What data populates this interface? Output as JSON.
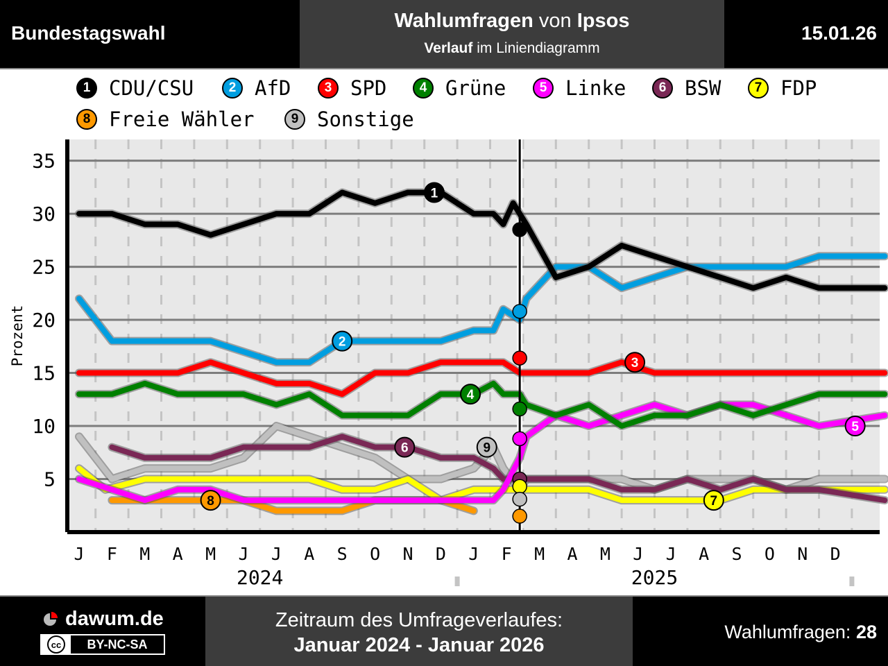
{
  "header": {
    "left": "Bundestagswahl",
    "title_bold1": "Wahlumfragen",
    "title_mid": " von ",
    "title_bold2": "Ipsos",
    "sub_bold": "Verlauf",
    "sub_rest": " im Liniendiagramm",
    "date": "15.01.26"
  },
  "legend": [
    {
      "num": "1",
      "name": "CDU/CSU",
      "color": "#000000",
      "text_color": "#ffffff"
    },
    {
      "num": "2",
      "name": "AfD",
      "color": "#009ee0",
      "text_color": "#ffffff"
    },
    {
      "num": "3",
      "name": "SPD",
      "color": "#ff0000",
      "text_color": "#ffffff"
    },
    {
      "num": "4",
      "name": "Grüne",
      "color": "#008000",
      "text_color": "#ffffff"
    },
    {
      "num": "5",
      "name": "Linke",
      "color": "#ff00ff",
      "text_color": "#ffffff"
    },
    {
      "num": "6",
      "name": "BSW",
      "color": "#7a2855",
      "text_color": "#ffffff"
    },
    {
      "num": "7",
      "name": "FDP",
      "color": "#ffff00",
      "text_color": "#000000"
    },
    {
      "num": "8",
      "name": "Freie Wähler",
      "color": "#ff9900",
      "text_color": "#000000"
    },
    {
      "num": "9",
      "name": "Sonstige",
      "color": "#c0c0c0",
      "text_color": "#000000"
    }
  ],
  "chart_data": {
    "type": "line",
    "ylabel": "Prozent",
    "ylim": [
      0,
      37
    ],
    "yticks": [
      5,
      10,
      15,
      20,
      25,
      30,
      35
    ],
    "xlim": [
      0,
      24.6
    ],
    "month_ticks": [
      "J",
      "F",
      "M",
      "A",
      "M",
      "J",
      "J",
      "A",
      "S",
      "O",
      "N",
      "D",
      "J",
      "F",
      "M",
      "A",
      "M",
      "J",
      "J",
      "A",
      "S",
      "O",
      "N",
      "D"
    ],
    "years": [
      {
        "label": "2024",
        "month": 5.5
      },
      {
        "label": "2025",
        "month": 17.5
      }
    ],
    "election": {
      "month": 13.4,
      "results": {
        "1": 28.5,
        "2": 20.8,
        "3": 16.4,
        "4": 11.6,
        "5": 8.8,
        "6": 5.0,
        "7": 4.3,
        "8": 1.5,
        "9": 3.1
      }
    },
    "series": [
      {
        "id": "1",
        "name": "CDU/CSU",
        "color": "#000000",
        "x": [
          0,
          1,
          2,
          3,
          4,
          5,
          6,
          7,
          8,
          9,
          10,
          11,
          12,
          12.6,
          12.9,
          13.2,
          13.4,
          13.6,
          14.5,
          15.5,
          16.5,
          17.5,
          18.5,
          19.5,
          20.5,
          21.5,
          22.5,
          23.5,
          24.5
        ],
        "y": [
          30,
          30,
          29,
          29,
          28,
          29,
          30,
          30,
          32,
          31,
          32,
          32,
          30,
          30,
          29,
          31,
          30,
          29,
          24,
          25,
          27,
          26,
          25,
          24,
          23,
          24,
          23,
          23,
          23
        ]
      },
      {
        "id": "2",
        "name": "AfD",
        "color": "#009ee0",
        "x": [
          0,
          1,
          2,
          3,
          4,
          5,
          6,
          7,
          8,
          9,
          10,
          11,
          12,
          12.6,
          12.9,
          13.4,
          13.6,
          14.5,
          15.5,
          16.5,
          17.5,
          18.5,
          19.5,
          20.5,
          21.5,
          22.5,
          23.5,
          24.5
        ],
        "y": [
          22,
          18,
          18,
          18,
          18,
          17,
          16,
          16,
          18,
          18,
          18,
          18,
          19,
          19,
          21,
          20,
          22,
          25,
          25,
          23,
          24,
          25,
          25,
          25,
          25,
          26,
          26,
          26
        ]
      },
      {
        "id": "3",
        "name": "SPD",
        "color": "#ff0000",
        "x": [
          0,
          1,
          2,
          3,
          4,
          5,
          6,
          7,
          8,
          9,
          10,
          11,
          12,
          12.6,
          12.9,
          13.4,
          13.6,
          14.5,
          15.5,
          16.5,
          17.5,
          18.5,
          19.5,
          20.5,
          21.5,
          22.5,
          23.5,
          24.5
        ],
        "y": [
          15,
          15,
          15,
          15,
          16,
          15,
          14,
          14,
          13,
          15,
          15,
          16,
          16,
          16,
          16,
          15,
          15,
          15,
          15,
          16,
          15,
          15,
          15,
          15,
          15,
          15,
          15,
          15
        ]
      },
      {
        "id": "4",
        "name": "Grüne",
        "color": "#008000",
        "x": [
          0,
          1,
          2,
          3,
          4,
          5,
          6,
          7,
          8,
          9,
          10,
          11,
          12,
          12.6,
          12.9,
          13.4,
          13.6,
          14.5,
          15.5,
          16.5,
          17.5,
          18.5,
          19.5,
          20.5,
          21.5,
          22.5,
          23.5,
          24.5
        ],
        "y": [
          13,
          13,
          14,
          13,
          13,
          13,
          12,
          13,
          11,
          11,
          11,
          13,
          13,
          14,
          13,
          13,
          12,
          11,
          12,
          10,
          11,
          11,
          12,
          11,
          12,
          13,
          13,
          13
        ]
      },
      {
        "id": "5",
        "name": "Linke",
        "color": "#ff00ff",
        "x": [
          0,
          1,
          2,
          3,
          4,
          5,
          6,
          7,
          8,
          9,
          10,
          11,
          12,
          12.6,
          12.9,
          13.4,
          13.6,
          14.5,
          15.5,
          16.5,
          17.5,
          18.5,
          19.5,
          20.5,
          21.5,
          22.5,
          23.5,
          24.5
        ],
        "y": [
          5,
          4,
          3,
          4,
          4,
          3,
          3,
          3,
          3,
          3,
          3,
          3,
          3,
          3,
          4,
          7,
          9,
          11,
          10,
          11,
          12,
          11,
          12,
          12,
          11,
          10,
          10.5,
          11
        ]
      },
      {
        "id": "6",
        "name": "BSW",
        "color": "#7a2855",
        "x": [
          1,
          2,
          3,
          4,
          5,
          6,
          7,
          8,
          9,
          10,
          11,
          12,
          12.6,
          12.9,
          13.4,
          13.6,
          14.5,
          15.5,
          16.5,
          17.5,
          18.5,
          19.5,
          20.5,
          21.5,
          22.5,
          23.5,
          24.5
        ],
        "y": [
          8,
          7,
          7,
          7,
          8,
          8,
          8,
          9,
          8,
          8,
          7,
          7,
          6,
          5,
          5,
          5,
          5,
          5,
          4,
          4,
          5,
          4,
          5,
          4,
          4,
          3.5,
          3
        ]
      },
      {
        "id": "7",
        "name": "FDP",
        "color": "#ffff00",
        "x": [
          0,
          0.8,
          2,
          3,
          4,
          5,
          6,
          7,
          8,
          9,
          10,
          11,
          12,
          12.6,
          12.9,
          13.4,
          13.6,
          14.5,
          15.5,
          16.5,
          17.5,
          18.5,
          19.5,
          20.5,
          21.5,
          22.5,
          23.5,
          24.5
        ],
        "y": [
          6,
          4,
          5,
          5,
          5,
          5,
          5,
          5,
          4,
          4,
          5,
          3,
          4,
          4,
          4,
          4,
          4,
          4,
          4,
          3,
          3,
          3,
          3,
          4,
          4,
          4,
          4,
          4
        ]
      },
      {
        "id": "8",
        "name": "Freie Wähler",
        "color": "#ff9900",
        "x": [
          1,
          2,
          3,
          4,
          5,
          6,
          7,
          8,
          9,
          10,
          11,
          12
        ],
        "y": [
          3,
          3,
          3,
          3,
          3,
          2,
          2,
          2,
          3,
          3,
          3,
          2
        ]
      },
      {
        "id": "9",
        "name": "Sonstige",
        "color": "#c0c0c0",
        "x": [
          0,
          1,
          2,
          3,
          4,
          5,
          6,
          7,
          8,
          9,
          10,
          11,
          12,
          12.6,
          12.9,
          13.4,
          13.6,
          14.5,
          15.5,
          16.5,
          17.5,
          18.5,
          19.5,
          20.5,
          21.5,
          22.5,
          23.5,
          24.5
        ],
        "y": [
          9,
          5,
          6,
          6,
          6,
          7,
          10,
          9,
          8,
          7,
          5,
          5,
          6,
          8,
          6,
          4,
          5,
          5,
          5,
          5,
          4,
          5,
          5,
          5,
          4,
          5,
          5,
          5
        ]
      }
    ],
    "labels": [
      {
        "id": "1",
        "x": 10.8,
        "y": 32
      },
      {
        "id": "2",
        "x": 8.0,
        "y": 18
      },
      {
        "id": "3",
        "x": 16.9,
        "y": 16
      },
      {
        "id": "4",
        "x": 11.9,
        "y": 13
      },
      {
        "id": "5",
        "x": 23.6,
        "y": 10
      },
      {
        "id": "6",
        "x": 9.9,
        "y": 8
      },
      {
        "id": "7",
        "x": 19.3,
        "y": 3
      },
      {
        "id": "8",
        "x": 4.0,
        "y": 3
      },
      {
        "id": "9",
        "x": 12.4,
        "y": 8
      }
    ]
  },
  "footer": {
    "site": "dawum.de",
    "license": "BY-NC-SA",
    "license_cc": "cc",
    "range_label": "Zeitraum des Umfrageverlaufes:",
    "range": "Januar 2024 - Januar 2026",
    "count_label": "Wahlumfragen: ",
    "count": "28"
  }
}
